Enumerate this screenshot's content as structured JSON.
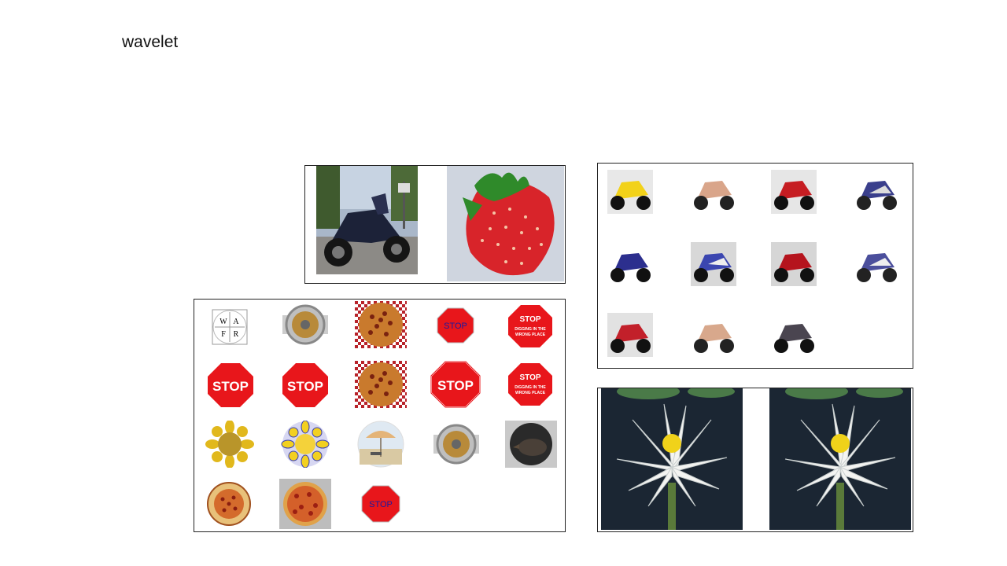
{
  "slide": {
    "title": "wavelet"
  },
  "icons": {
    "wafr_letters": [
      "W",
      "A",
      "F",
      "R"
    ],
    "stop_word": "STOP",
    "stop_sub_line1": "DIGGING IN THE",
    "stop_sub_line2": "WRONG PLACE"
  },
  "colors": {
    "stop_red": "#e8161b",
    "pizza": "#c97a2d",
    "checker": "#b8232a",
    "sunflower": "#f0c520",
    "lily_petal": "#f4f4f2",
    "lily_bg": "#1b2633"
  }
}
